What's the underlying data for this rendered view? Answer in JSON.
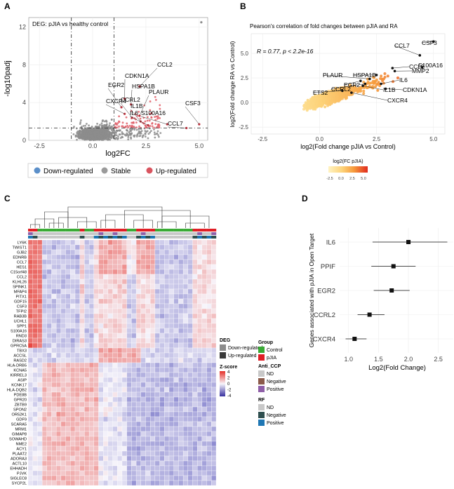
{
  "panel_labels": {
    "a": "A",
    "b": "B",
    "c": "C",
    "d": "D"
  },
  "chart_data": [
    {
      "panel": "A",
      "type": "scatter",
      "title": "DEG: pJIA vs healthy control",
      "xlabel": "log2FC",
      "ylabel": "-log10padj",
      "xlim": [
        -3,
        5.4
      ],
      "ylim": [
        0,
        13
      ],
      "xticks": [
        -2.5,
        0.0,
        2.5,
        5.0
      ],
      "yticks": [
        0,
        4,
        8,
        12
      ],
      "threshold_x": [
        -1,
        1
      ],
      "threshold_y": 1.3,
      "legend": [
        {
          "label": "Down-regulated",
          "color": "#5b8fc9"
        },
        {
          "label": "Stable",
          "color": "#9a9a9a"
        },
        {
          "label": "Up-regulated",
          "color": "#d9545f"
        }
      ],
      "labeled_points": [
        {
          "label": "CCL2",
          "x": 2.2,
          "y": 5.7
        },
        {
          "label": "CDKN1A",
          "x": 1.5,
          "y": 4.4
        },
        {
          "label": "HSPA1B",
          "x": 1.8,
          "y": 3.8
        },
        {
          "label": "EGR2",
          "x": 1.35,
          "y": 3.5
        },
        {
          "label": "PLAUR",
          "x": 2.2,
          "y": 2.6
        },
        {
          "label": "CXCR4",
          "x": 1.5,
          "y": 2.8
        },
        {
          "label": "CCRL2",
          "x": 1.85,
          "y": 2.4
        },
        {
          "label": "IL1B",
          "x": 2.25,
          "y": 2.0
        },
        {
          "label": "IL6",
          "x": 2.6,
          "y": 1.6
        },
        {
          "label": "S100A16",
          "x": 3.5,
          "y": 1.7
        },
        {
          "label": "CSF3",
          "x": 5.0,
          "y": 1.7
        },
        {
          "label": "CCL7",
          "x": 4.4,
          "y": 1.3
        }
      ]
    },
    {
      "panel": "B",
      "type": "scatter",
      "title": "Pearson's correlation of fold changes between pJIA and RA",
      "annotation": "R = 0.77, p < 2.2e-16",
      "xlabel": "log2(Fold change pJIA vs Control)",
      "ylabel": "log2(Fold change RA vs Control)",
      "xlim": [
        -3,
        5.5
      ],
      "ylim": [
        -3.2,
        7
      ],
      "xticks": [
        -2.5,
        0.0,
        2.5,
        5.0
      ],
      "yticks": [
        -2.5,
        0.0,
        2.5,
        5.0
      ],
      "colorbar_title": "log2(FC pJIA)",
      "colorbar_ticks": [
        -2.5,
        0.0,
        2.5,
        5.0
      ],
      "labeled_points": [
        {
          "label": "CSF3",
          "x": 5.0,
          "y": 6.2
        },
        {
          "label": "CCL7",
          "x": 4.4,
          "y": 4.8
        },
        {
          "label": "S100A16",
          "x": 4.5,
          "y": 3.6
        },
        {
          "label": "CCL2",
          "x": 3.2,
          "y": 3.5
        },
        {
          "label": "MMP2",
          "x": 3.3,
          "y": 3.2
        },
        {
          "label": "HSPA1B",
          "x": 2.5,
          "y": 2.8
        },
        {
          "label": "PLAUR",
          "x": 2.2,
          "y": 2.4
        },
        {
          "label": "EGR2",
          "x": 1.8,
          "y": 2.2
        },
        {
          "label": "CCRL2",
          "x": 2.0,
          "y": 1.9
        },
        {
          "label": "ETS2",
          "x": 1.0,
          "y": 1.2
        },
        {
          "label": "IL6",
          "x": 2.7,
          "y": 1.9
        },
        {
          "label": "IL1B",
          "x": 1.9,
          "y": 1.7
        },
        {
          "label": "CDKN1A",
          "x": 2.9,
          "y": 1.4
        },
        {
          "label": "CXCR4",
          "x": 1.4,
          "y": 1.0
        }
      ]
    },
    {
      "panel": "C",
      "type": "heatmap",
      "rows": [
        "LY6K",
        "TWIST1",
        "GJB2",
        "EDNRB",
        "CCL7",
        "HES1",
        "C15orf48",
        "CCL2",
        "KLHL26",
        "SPINK1",
        "MFAP4",
        "PITX1",
        "GDF15",
        "CSF3",
        "TFPI2",
        "RAB3B",
        "UCHL1",
        "SPP1",
        "S100A16",
        "RND3",
        "DIRAS3",
        "GPRC5A",
        "TBX3",
        "ACCSL",
        "RASD2",
        "HLA-DRB5",
        "KCNA5",
        "KIRREL3",
        "ASIP",
        "KCNK17",
        "HLA-DQB2",
        "PDE8B",
        "GPR20",
        "ZBTB9",
        "SPON2",
        "OR52K1",
        "GDF9",
        "SCARA5",
        "MRM1",
        "GIMAP8",
        "SOWAHD",
        "NME2",
        "ACY1",
        "PLAAT2",
        "ADORA3",
        "ACTL10",
        "EHHADH",
        "PJVK",
        "SIGLEC8",
        "SYCP2L"
      ],
      "n_columns": 40,
      "legend": {
        "deg_title": "DEG",
        "deg_items": [
          {
            "label": "Down-regulated",
            "color": "#8c8c8c"
          },
          {
            "label": "Up-regulated",
            "color": "#3a3a3a"
          }
        ],
        "zscore_title": "Z-score",
        "zscore_ticks": [
          "4",
          "2",
          "0",
          "-2",
          "-4"
        ],
        "group_title": "Group",
        "group_items": [
          {
            "label": "Control",
            "color": "#3aaa35"
          },
          {
            "label": "pJIA",
            "color": "#e01f26"
          }
        ],
        "anticcp_title": "Anti_CCP",
        "anticcp_items": [
          {
            "label": "ND",
            "color": "#c8c8c8"
          },
          {
            "label": "Negative",
            "color": "#8b5a4a"
          },
          {
            "label": "Positive",
            "color": "#8f5fa8"
          }
        ],
        "rf_title": "RF",
        "rf_items": [
          {
            "label": "ND",
            "color": "#c8c8c8"
          },
          {
            "label": "Negative",
            "color": "#2f4f4f"
          },
          {
            "label": "Positive",
            "color": "#1f77b4"
          }
        ]
      }
    },
    {
      "panel": "D",
      "type": "forest",
      "xlabel": "Log2(Fold Change)",
      "ylabel": "Genes associated with pJIA in Open Target",
      "xlim": [
        0.85,
        2.75
      ],
      "xticks": [
        1.0,
        1.5,
        2.0,
        2.5
      ],
      "genes": [
        {
          "label": "IL6",
          "value": 2.0,
          "low": 1.4,
          "high": 2.65
        },
        {
          "label": "PPIF",
          "value": 1.75,
          "low": 1.38,
          "high": 2.12
        },
        {
          "label": "EGR2",
          "value": 1.72,
          "low": 1.42,
          "high": 2.02
        },
        {
          "label": "CCRL2",
          "value": 1.35,
          "low": 1.15,
          "high": 1.6
        },
        {
          "label": "CXCR4",
          "value": 1.1,
          "low": 0.95,
          "high": 1.3
        }
      ]
    }
  ]
}
